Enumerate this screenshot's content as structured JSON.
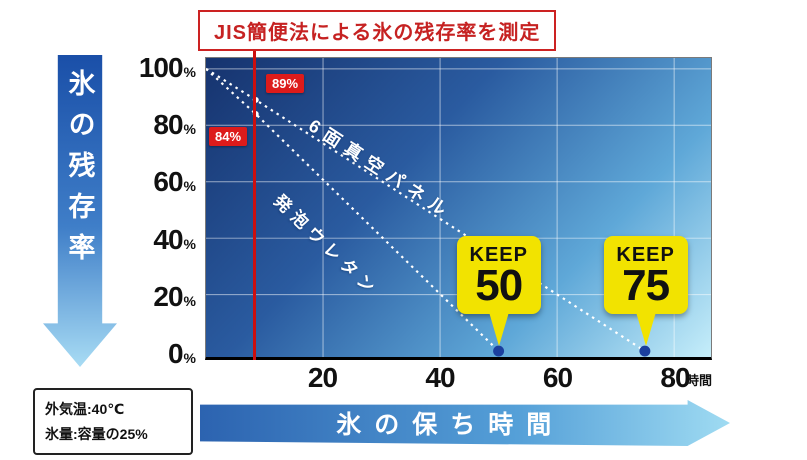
{
  "title": "JIS簡便法による氷の残存率を測定",
  "y_axis": {
    "label": "氷の残存率",
    "unit": "%"
  },
  "x_axis": {
    "label": "氷の保ち時間",
    "unit": "時間"
  },
  "series_labels": {
    "vacuum": "6面真空パネル",
    "urethane": "発泡ウレタン"
  },
  "annotations": {
    "vacuum": "89%",
    "urethane": "84%"
  },
  "conditions": {
    "line1": "外気温:40℃",
    "line2": "氷量:容量の25%"
  },
  "colors": {
    "accent_red": "#cc0f0f",
    "keep_yellow": "#f2e300",
    "dot_blue": "#1b3f9e",
    "grid_white": "rgba(255,255,255,0.55)"
  },
  "chart_data": {
    "type": "line",
    "title": "JIS簡便法による氷の残存率を測定",
    "xlabel": "氷の保ち時間",
    "ylabel": "氷の残存率",
    "x_unit": "時間",
    "y_unit": "%",
    "xlim": [
      0,
      86
    ],
    "ylim": [
      0,
      100
    ],
    "x_ticks": [
      20,
      40,
      60,
      80
    ],
    "y_ticks": [
      100,
      80,
      60,
      40,
      20,
      0
    ],
    "grid": true,
    "measure_x": 8.5,
    "series": [
      {
        "name": "6面真空パネル",
        "points": [
          [
            0,
            100
          ],
          [
            8.5,
            89
          ],
          [
            75,
            0
          ]
        ],
        "value_at_measure": "89%",
        "keep_hours": 75,
        "style": "white-dotted"
      },
      {
        "name": "発泡ウレタン",
        "points": [
          [
            0,
            100
          ],
          [
            8.5,
            84
          ],
          [
            50,
            0
          ]
        ],
        "value_at_measure": "84%",
        "keep_hours": 50,
        "style": "white-dotted"
      }
    ],
    "keep_markers": [
      {
        "label": "KEEP",
        "value": 50,
        "x": 50
      },
      {
        "label": "KEEP",
        "value": 75,
        "x": 75
      }
    ],
    "conditions": [
      "外気温:40℃",
      "氷量:容量の25%"
    ]
  }
}
